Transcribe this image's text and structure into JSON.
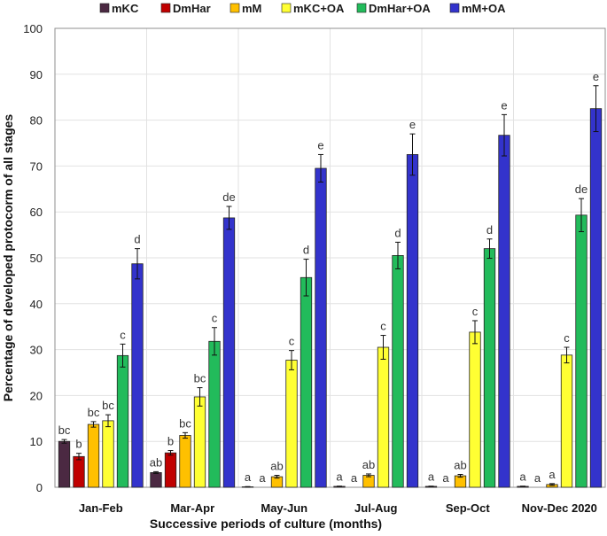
{
  "chart_data": {
    "type": "bar",
    "title": "",
    "xlabel": "Successive periods of culture (months)",
    "ylabel": "Percentage of developed protocorm of all stages",
    "ylim": [
      0,
      100
    ],
    "yticks": [
      0,
      10,
      20,
      30,
      40,
      50,
      60,
      70,
      80,
      90,
      100
    ],
    "grid": true,
    "legend_position": "top",
    "categories": [
      "Jan-Feb",
      "Mar-Apr",
      "May-Jun",
      "Jul-Aug",
      "Sep-Oct",
      "Nov-Dec 2020"
    ],
    "series": [
      {
        "name": "mKC",
        "color": "#4b2942",
        "values": [
          10.0,
          3.2,
          0.1,
          0.2,
          0.2,
          0.2
        ],
        "errors": [
          0.4,
          0.2,
          0.05,
          0.05,
          0.05,
          0.05
        ],
        "labels": [
          "bc",
          "ab",
          "a",
          "a",
          "a",
          "a"
        ]
      },
      {
        "name": "DmHar",
        "color": "#c00000",
        "values": [
          6.7,
          7.5,
          0.0,
          0.0,
          0.0,
          0.0
        ],
        "errors": [
          0.7,
          0.5,
          0,
          0,
          0,
          0
        ],
        "labels": [
          "b",
          "b",
          "a",
          "a",
          "a",
          "a"
        ]
      },
      {
        "name": "mM",
        "color": "#ffc000",
        "values": [
          13.7,
          11.3,
          2.3,
          2.6,
          2.5,
          0.6
        ],
        "errors": [
          0.6,
          0.6,
          0.3,
          0.3,
          0.3,
          0.2
        ],
        "labels": [
          "bc",
          "bc",
          "ab",
          "ab",
          "ab",
          "a"
        ]
      },
      {
        "name": "mKC+OA",
        "color": "#ffff33",
        "values": [
          14.5,
          19.7,
          27.7,
          30.5,
          33.8,
          28.8
        ],
        "errors": [
          1.3,
          2.0,
          2.1,
          2.6,
          2.5,
          1.7
        ],
        "labels": [
          "bc",
          "bc",
          "c",
          "c",
          "c",
          "c"
        ]
      },
      {
        "name": "DmHar+OA",
        "color": "#22bb5b",
        "values": [
          28.7,
          31.8,
          45.7,
          50.5,
          52.0,
          59.3
        ],
        "errors": [
          2.5,
          3.0,
          4.0,
          2.9,
          2.1,
          3.6
        ],
        "labels": [
          "c",
          "c",
          "d",
          "d",
          "d",
          "de"
        ]
      },
      {
        "name": "mM+OA",
        "color": "#3333cc",
        "values": [
          48.7,
          58.7,
          69.5,
          72.5,
          76.7,
          82.5
        ],
        "errors": [
          3.3,
          2.5,
          3.0,
          4.5,
          4.5,
          5.0
        ],
        "labels": [
          "d",
          "de",
          "e",
          "e",
          "e",
          "e"
        ]
      }
    ]
  }
}
